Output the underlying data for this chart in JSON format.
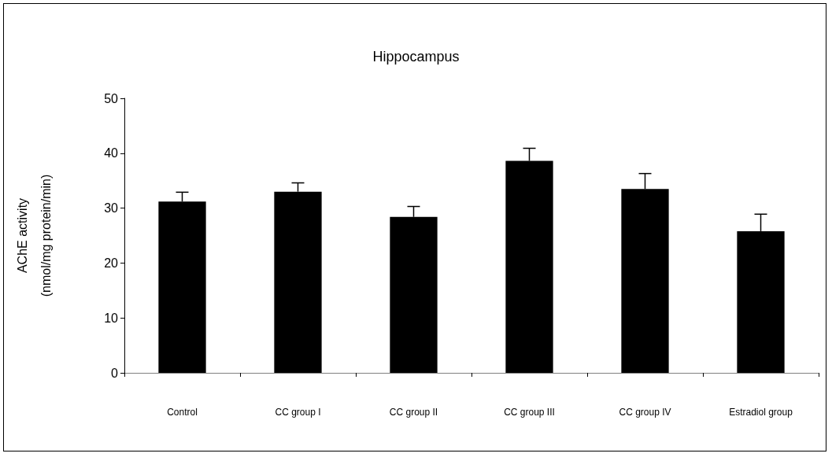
{
  "chart_data": {
    "type": "bar",
    "title": "Hippocampus",
    "ylabel": "AChE activity\n(nmol/mg protein/min)",
    "categories": [
      "Control",
      "CC group I",
      "CC group II",
      "CC group III",
      "CC group IV",
      "Estradiol group"
    ],
    "values": [
      31.2,
      33.0,
      28.4,
      38.6,
      33.5,
      25.8
    ],
    "errors": [
      1.7,
      1.6,
      1.9,
      2.3,
      2.8,
      3.1
    ],
    "color": "#000000",
    "ylim": [
      0,
      50
    ],
    "yticks": [
      0,
      10,
      20,
      30,
      40,
      50
    ],
    "grid": false
  }
}
